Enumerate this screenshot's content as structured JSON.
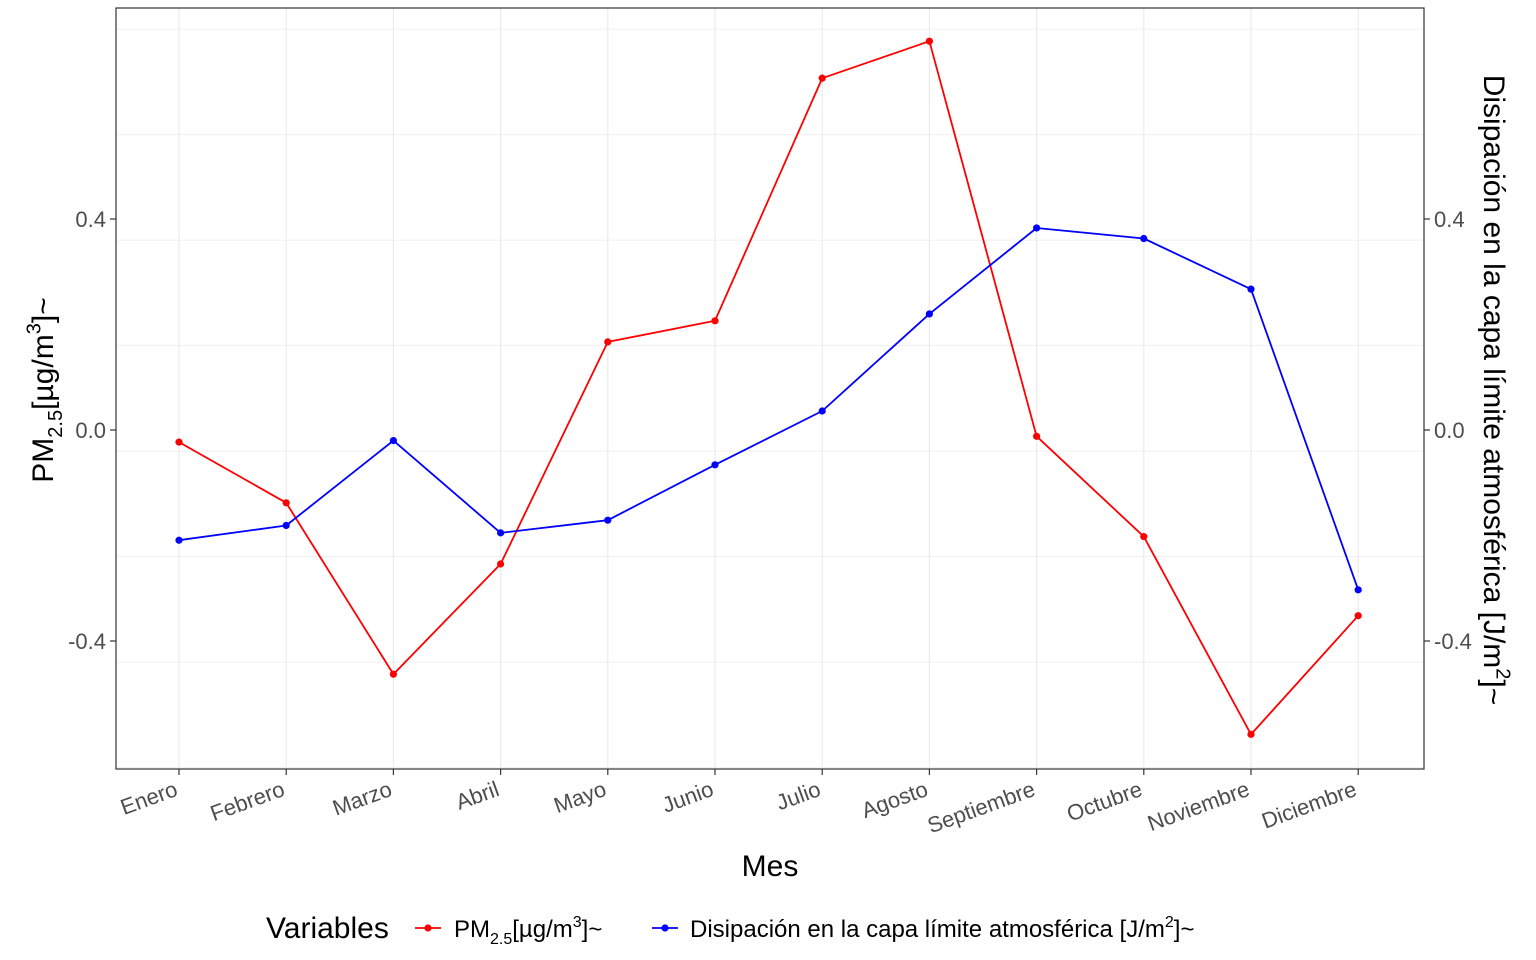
{
  "chart_data": {
    "type": "line",
    "categories": [
      "Enero",
      "Febrero",
      "Marzo",
      "Abril",
      "Mayo",
      "Junio",
      "Julio",
      "Agosto",
      "Septiembre",
      "Octubre",
      "Noviembre",
      "Diciembre"
    ],
    "series": [
      {
        "key": "pm25",
        "name": "PM2.5 [µg/m3]~",
        "color": "#ff0000",
        "values": [
          -0.023,
          -0.138,
          -0.463,
          -0.254,
          0.167,
          0.207,
          0.667,
          0.737,
          -0.012,
          -0.202,
          -0.577,
          -0.352
        ]
      },
      {
        "key": "bld",
        "name": "Disipación en la capa límite atmosférica  [J/m2]~",
        "color": "#0000ff",
        "values": [
          -0.209,
          -0.181,
          -0.02,
          -0.195,
          -0.171,
          -0.066,
          0.036,
          0.22,
          0.383,
          0.363,
          0.267,
          -0.303
        ]
      }
    ],
    "xlabel": "Mes",
    "ylabel_left": "PM2.5 [µg/m3]~",
    "ylabel_right": "Disipación en la capa límite atmosférica [J/m2]~",
    "y_ticks": [
      "-0.4",
      "0.0",
      "0.4"
    ],
    "y_tick_values": [
      -0.4,
      0.0,
      0.4
    ],
    "ylim": [
      -0.64,
      0.8
    ],
    "grid": true,
    "legend_title": "Variables",
    "legend_position": "bottom"
  }
}
